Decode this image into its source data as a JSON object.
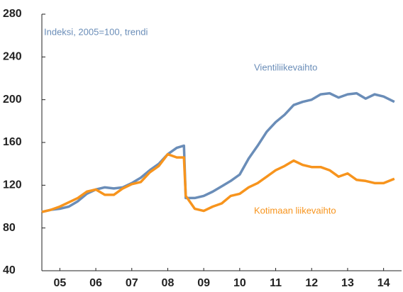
{
  "chart_data": {
    "type": "line",
    "annotations": [
      {
        "text": "Indeksi, 2005=100, trendi",
        "color": "#6a8db8"
      }
    ],
    "x": [
      5,
      5.25,
      5.5,
      5.75,
      6,
      6.25,
      6.5,
      6.75,
      7,
      7.25,
      7.5,
      7.75,
      8,
      8.25,
      8.5,
      8.75,
      8.95,
      9,
      9.25,
      9.5,
      9.75,
      10,
      10.25,
      10.5,
      10.75,
      11,
      11.25,
      11.5,
      11.75,
      12,
      12.25,
      12.5,
      12.75,
      13,
      13.25,
      13.5,
      13.75,
      14,
      14.25,
      14.5,
      14.8
    ],
    "series": [
      {
        "name": "Vientiliikevaihto",
        "color": "#6a8db8",
        "values": [
          95,
          97,
          98,
          100,
          105,
          112,
          116,
          118,
          117,
          118,
          122,
          127,
          134,
          140,
          149,
          155,
          157,
          108,
          108,
          110,
          114,
          119,
          124,
          130,
          145,
          157,
          170,
          179,
          186,
          195,
          198,
          200,
          205,
          206,
          202,
          205,
          206,
          201,
          205,
          203,
          198
        ]
      },
      {
        "name": "Kotimaan liikevaihto",
        "color": "#f7941d",
        "values": [
          95,
          97,
          100,
          104,
          108,
          114,
          116,
          111,
          111,
          117,
          121,
          123,
          132,
          138,
          149,
          146,
          146,
          110,
          98,
          96,
          100,
          103,
          110,
          112,
          118,
          122,
          128,
          134,
          138,
          143,
          139,
          137,
          137,
          134,
          128,
          131,
          125,
          124,
          122,
          122,
          126
        ]
      }
    ],
    "xlim": [
      5,
      15
    ],
    "xticks": [
      {
        "value": 5.5,
        "label": "05"
      },
      {
        "value": 6.5,
        "label": "06"
      },
      {
        "value": 7.5,
        "label": "07"
      },
      {
        "value": 8.5,
        "label": "08"
      },
      {
        "value": 9.5,
        "label": "09"
      },
      {
        "value": 10.5,
        "label": "10"
      },
      {
        "value": 11.5,
        "label": "11"
      },
      {
        "value": 12.5,
        "label": "12"
      },
      {
        "value": 13.5,
        "label": "13"
      },
      {
        "value": 14.5,
        "label": "14"
      }
    ],
    "ylim": [
      40,
      280
    ],
    "yticks": [
      40,
      80,
      120,
      160,
      200,
      240,
      280
    ],
    "grid": false
  }
}
